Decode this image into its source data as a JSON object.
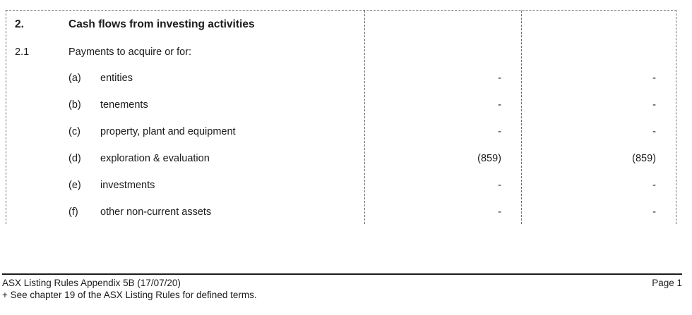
{
  "table": {
    "section": {
      "number": "2.",
      "title": "Cash flows from investing activities"
    },
    "subsection": {
      "number": "2.1",
      "label": "Payments to acquire or for:"
    },
    "rows": [
      {
        "letter": "(a)",
        "label": "entities",
        "col2": "-",
        "col3": "-"
      },
      {
        "letter": "(b)",
        "label": "tenements",
        "col2": "-",
        "col3": "-"
      },
      {
        "letter": "(c)",
        "label": "property, plant and equipment",
        "col2": "-",
        "col3": "-"
      },
      {
        "letter": "(d)",
        "label": "exploration & evaluation",
        "col2": "(859)",
        "col3": "(859)"
      },
      {
        "letter": "(e)",
        "label": "investments",
        "col2": "-",
        "col3": "-"
      },
      {
        "letter": "(f)",
        "label": "other non-current assets",
        "col2": "-",
        "col3": "-"
      }
    ]
  },
  "footer": {
    "doc_title": "ASX Listing Rules Appendix 5B (17/07/20)",
    "note": "+ See chapter 19 of the ASX Listing Rules for defined terms.",
    "page": "Page 1"
  },
  "colors": {
    "text": "#1b1b1b",
    "table_border": "#6e6e6e",
    "footer_rule": "#1b1b1b"
  }
}
